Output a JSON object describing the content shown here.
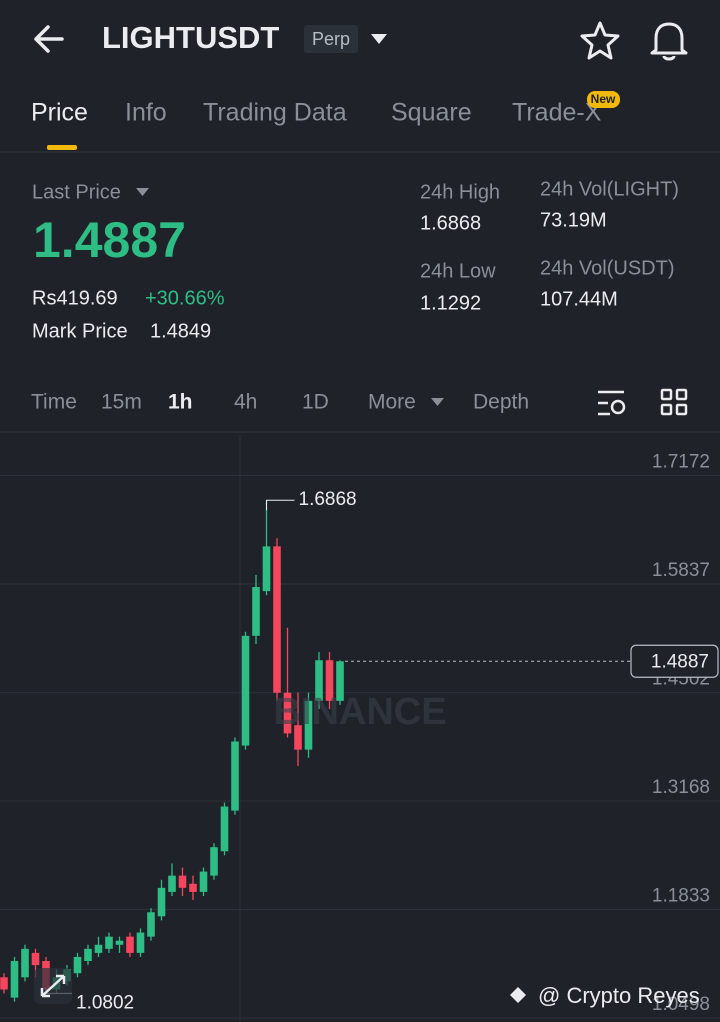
{
  "header": {
    "symbol": "LIGHTUSDT",
    "badge": "Perp"
  },
  "tabs": [
    "Price",
    "Info",
    "Trading Data",
    "Square",
    "Trade-X"
  ],
  "tab_badge": "New",
  "ticker": {
    "last_price_label": "Last Price",
    "last_price": "1.4887",
    "fiat_price": "Rs419.69",
    "change": "+30.66%",
    "mark_price_label": "Mark Price",
    "mark_price": "1.4849",
    "stats": [
      {
        "label": "24h High",
        "value": "1.6868"
      },
      {
        "label": "24h Low",
        "value": "1.1292"
      },
      {
        "label": "24h Vol(LIGHT)",
        "value": "73.19M"
      },
      {
        "label": "24h Vol(USDT)",
        "value": "107.44M"
      }
    ]
  },
  "intervals": [
    "Time",
    "15m",
    "1h",
    "4h",
    "1D",
    "More",
    "Depth"
  ],
  "watermark": "BINANCE",
  "footer": "@ Crypto Reyes",
  "chart_data": {
    "type": "candlestick",
    "up_color": "#2ebd85",
    "down_color": "#f6465d",
    "open": [
      1.1,
      1.075,
      1.1,
      1.13,
      1.12,
      1.085,
      1.095,
      1.105,
      1.12,
      1.13,
      1.135,
      1.14,
      1.15,
      1.13,
      1.15,
      1.175,
      1.205,
      1.225,
      1.215,
      1.205,
      1.225,
      1.255,
      1.305,
      1.385,
      1.52,
      1.575,
      1.63,
      1.45,
      1.41,
      1.38,
      1.44,
      1.49,
      1.44
    ],
    "high": [
      1.105,
      1.125,
      1.14,
      1.135,
      1.125,
      1.11,
      1.115,
      1.13,
      1.14,
      1.15,
      1.155,
      1.15,
      1.155,
      1.16,
      1.185,
      1.22,
      1.24,
      1.235,
      1.225,
      1.235,
      1.265,
      1.315,
      1.395,
      1.525,
      1.595,
      1.6868,
      1.64,
      1.53,
      1.45,
      1.45,
      1.5,
      1.5,
      1.49
    ],
    "low": [
      1.08,
      1.07,
      1.095,
      1.1,
      1.0802,
      1.08,
      1.09,
      1.1,
      1.115,
      1.125,
      1.13,
      1.13,
      1.125,
      1.125,
      1.145,
      1.17,
      1.2,
      1.2,
      1.195,
      1.2,
      1.22,
      1.25,
      1.3,
      1.38,
      1.51,
      1.57,
      1.44,
      1.395,
      1.36,
      1.37,
      1.43,
      1.43,
      1.435
    ],
    "close": [
      1.085,
      1.12,
      1.135,
      1.115,
      1.085,
      1.1,
      1.11,
      1.125,
      1.135,
      1.14,
      1.15,
      1.145,
      1.13,
      1.155,
      1.18,
      1.21,
      1.225,
      1.21,
      1.205,
      1.23,
      1.26,
      1.31,
      1.39,
      1.52,
      1.58,
      1.63,
      1.45,
      1.4,
      1.38,
      1.44,
      1.49,
      1.44,
      1.4887
    ],
    "high_marker": 1.6868,
    "low_marker": 1.0802,
    "last_price_marker": 1.4887,
    "ylim": [
      1.045,
      1.767
    ],
    "yticks": [
      1.0498,
      1.1833,
      1.3168,
      1.4502,
      1.5837,
      1.7172
    ],
    "grid": true
  }
}
